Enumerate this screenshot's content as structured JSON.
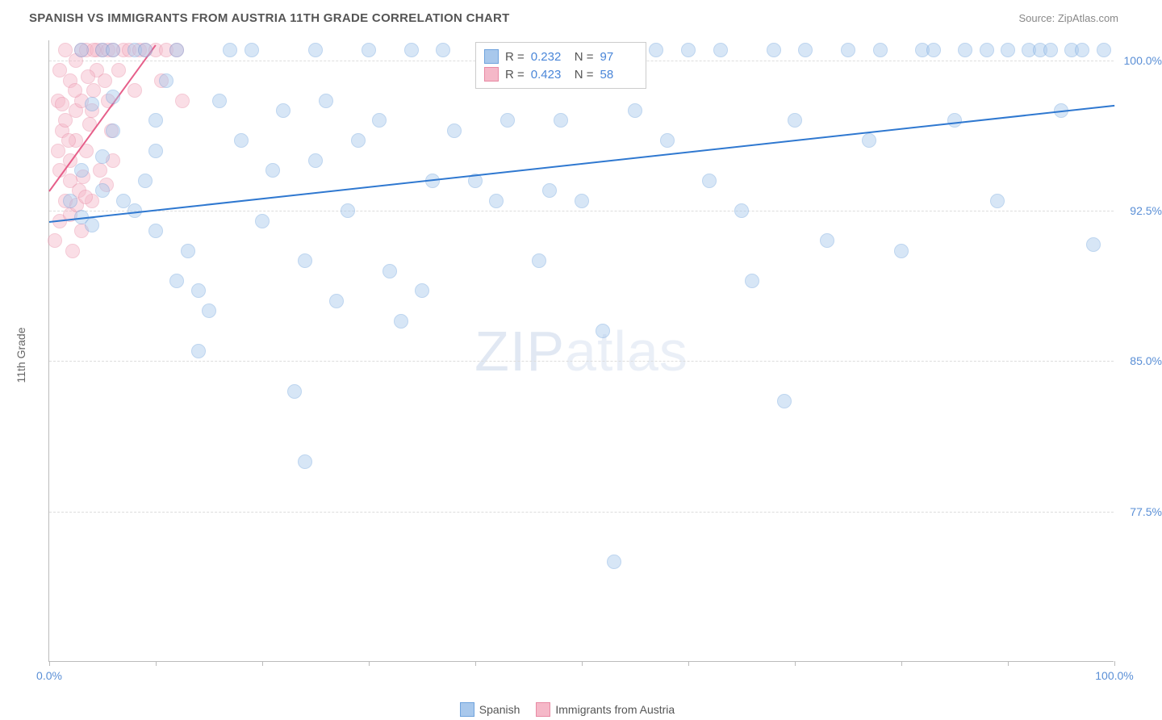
{
  "header": {
    "title": "SPANISH VS IMMIGRANTS FROM AUSTRIA 11TH GRADE CORRELATION CHART",
    "source": "Source: ZipAtlas.com"
  },
  "axis": {
    "y_title": "11th Grade",
    "x_min": 0.0,
    "x_max": 100.0,
    "y_min": 70.0,
    "y_max": 101.0,
    "y_ticks": [
      77.5,
      85.0,
      92.5,
      100.0
    ],
    "y_tick_labels": [
      "77.5%",
      "85.0%",
      "92.5%",
      "100.0%"
    ],
    "x_ticks": [
      0,
      10,
      20,
      30,
      40,
      50,
      60,
      70,
      80,
      90,
      100
    ],
    "x_labels": {
      "0": "0.0%",
      "100": "100.0%"
    }
  },
  "style": {
    "grid_color": "#dddddd",
    "axis_color": "#bbbbbb",
    "tick_label_color": "#5a8fd6",
    "marker_radius": 9,
    "marker_opacity": 0.45,
    "background": "#ffffff"
  },
  "series": {
    "spanish": {
      "label": "Spanish",
      "fill": "#a8c8ec",
      "stroke": "#6fa3dd",
      "line_color": "#2f78d0",
      "R": "0.232",
      "N": "97",
      "trend": {
        "x1": 0,
        "y1": 92.0,
        "x2": 100,
        "y2": 97.8
      },
      "points": [
        [
          2,
          93
        ],
        [
          3,
          92.2
        ],
        [
          4,
          91.8
        ],
        [
          5,
          93.5
        ],
        [
          3,
          94.5
        ],
        [
          5,
          95.2
        ],
        [
          6,
          96.5
        ],
        [
          4,
          97.8
        ],
        [
          5,
          100.5
        ],
        [
          6,
          100.5
        ],
        [
          7,
          93
        ],
        [
          8,
          92.5
        ],
        [
          9,
          94
        ],
        [
          10,
          95.5
        ],
        [
          10,
          97
        ],
        [
          11,
          99
        ],
        [
          12,
          89
        ],
        [
          13,
          90.5
        ],
        [
          14,
          85.5
        ],
        [
          15,
          87.5
        ],
        [
          16,
          98
        ],
        [
          17,
          100.5
        ],
        [
          18,
          96
        ],
        [
          19,
          100.5
        ],
        [
          20,
          92
        ],
        [
          21,
          94.5
        ],
        [
          22,
          97.5
        ],
        [
          23,
          83.5
        ],
        [
          24,
          90
        ],
        [
          25,
          95
        ],
        [
          25,
          100.5
        ],
        [
          26,
          98
        ],
        [
          27,
          88
        ],
        [
          28,
          92.5
        ],
        [
          29,
          96
        ],
        [
          30,
          100.5
        ],
        [
          31,
          97
        ],
        [
          32,
          89.5
        ],
        [
          33,
          87
        ],
        [
          34,
          100.5
        ],
        [
          35,
          88.5
        ],
        [
          36,
          94
        ],
        [
          37,
          100.5
        ],
        [
          38,
          96.5
        ],
        [
          40,
          94
        ],
        [
          41,
          100.5
        ],
        [
          42,
          93
        ],
        [
          43,
          97
        ],
        [
          45,
          100.5
        ],
        [
          46,
          90
        ],
        [
          47,
          93.5
        ],
        [
          48,
          97
        ],
        [
          49,
          100.5
        ],
        [
          50,
          93
        ],
        [
          52,
          86.5
        ],
        [
          53,
          75
        ],
        [
          54,
          100.5
        ],
        [
          55,
          97.5
        ],
        [
          57,
          100.5
        ],
        [
          58,
          96
        ],
        [
          60,
          100.5
        ],
        [
          62,
          94
        ],
        [
          63,
          100.5
        ],
        [
          65,
          92.5
        ],
        [
          66,
          89
        ],
        [
          68,
          100.5
        ],
        [
          69,
          83
        ],
        [
          70,
          97
        ],
        [
          71,
          100.5
        ],
        [
          73,
          91
        ],
        [
          75,
          100.5
        ],
        [
          77,
          96
        ],
        [
          78,
          100.5
        ],
        [
          80,
          90.5
        ],
        [
          82,
          100.5
        ],
        [
          83,
          100.5
        ],
        [
          85,
          97
        ],
        [
          86,
          100.5
        ],
        [
          88,
          100.5
        ],
        [
          89,
          93
        ],
        [
          90,
          100.5
        ],
        [
          92,
          100.5
        ],
        [
          93,
          100.5
        ],
        [
          94,
          100.5
        ],
        [
          95,
          97.5
        ],
        [
          96,
          100.5
        ],
        [
          97,
          100.5
        ],
        [
          98,
          90.8
        ],
        [
          99,
          100.5
        ],
        [
          24,
          80
        ],
        [
          14,
          88.5
        ],
        [
          10,
          91.5
        ],
        [
          6,
          98.2
        ],
        [
          8,
          100.5
        ],
        [
          9,
          100.5
        ],
        [
          12,
          100.5
        ],
        [
          3,
          100.5
        ]
      ]
    },
    "austria": {
      "label": "Immigrants from Austria",
      "fill": "#f5b8c8",
      "stroke": "#e88aa4",
      "line_color": "#e65f8a",
      "R": "0.423",
      "N": "58",
      "trend": {
        "x1": 0,
        "y1": 93.5,
        "x2": 10,
        "y2": 100.8
      },
      "points": [
        [
          0.5,
          91
        ],
        [
          1,
          92
        ],
        [
          1.5,
          93
        ],
        [
          1,
          94.5
        ],
        [
          0.8,
          95.5
        ],
        [
          1.2,
          96.5
        ],
        [
          1.5,
          97
        ],
        [
          2,
          94
        ],
        [
          2,
          95
        ],
        [
          2.5,
          96
        ],
        [
          2.5,
          97.5
        ],
        [
          3,
          98
        ],
        [
          2,
          99
        ],
        [
          2.5,
          100
        ],
        [
          3,
          100.5
        ],
        [
          3.5,
          100.5
        ],
        [
          1.5,
          100.5
        ],
        [
          1,
          99.5
        ],
        [
          0.8,
          98
        ],
        [
          1.2,
          97.8
        ],
        [
          2.8,
          93.5
        ],
        [
          3.2,
          94.2
        ],
        [
          3.5,
          95.5
        ],
        [
          3.8,
          96.8
        ],
        [
          4,
          97.5
        ],
        [
          4.2,
          98.5
        ],
        [
          4.5,
          99.5
        ],
        [
          4.5,
          100.5
        ],
        [
          5,
          100.5
        ],
        [
          5.2,
          99
        ],
        [
          5.5,
          98
        ],
        [
          5.8,
          96.5
        ],
        [
          6,
          95
        ],
        [
          4,
          93
        ],
        [
          3,
          91.5
        ],
        [
          2.2,
          90.5
        ],
        [
          4.2,
          100.5
        ],
        [
          5.5,
          100.5
        ],
        [
          6,
          100.5
        ],
        [
          6.5,
          99.5
        ],
        [
          7,
          100.5
        ],
        [
          7.5,
          100.5
        ],
        [
          8,
          98.5
        ],
        [
          8.5,
          100.5
        ],
        [
          9,
          100.5
        ],
        [
          10,
          100.5
        ],
        [
          10.5,
          99
        ],
        [
          11,
          100.5
        ],
        [
          12,
          100.5
        ],
        [
          12.5,
          98
        ],
        [
          2,
          92.3
        ],
        [
          2.6,
          92.8
        ],
        [
          3.4,
          93.2
        ],
        [
          1.8,
          96
        ],
        [
          2.4,
          98.5
        ],
        [
          3.6,
          99.2
        ],
        [
          4.8,
          94.5
        ],
        [
          5.4,
          93.8
        ]
      ]
    }
  },
  "legend": {
    "stats_box": {
      "left_pct": 40,
      "top_pct": 0
    },
    "bottom_labels": [
      "Spanish",
      "Immigrants from Austria"
    ]
  },
  "watermark": {
    "bold": "ZIP",
    "light": "atlas"
  }
}
